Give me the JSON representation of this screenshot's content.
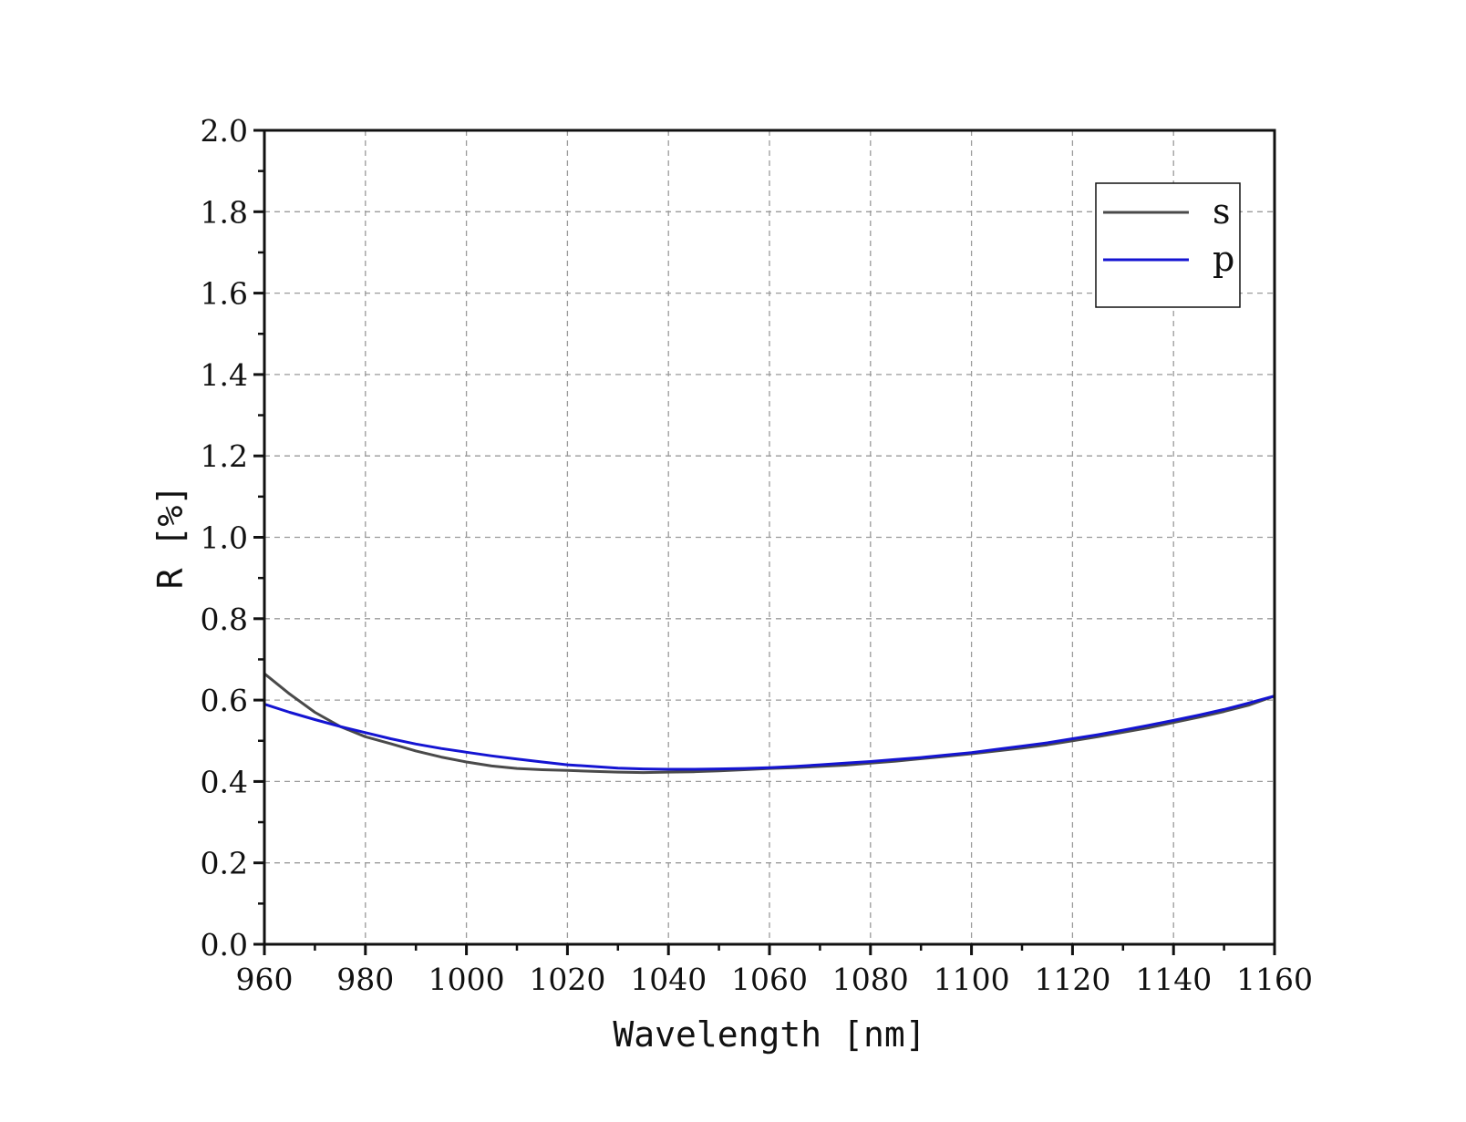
{
  "chart_data": {
    "type": "line",
    "xlabel": "Wavelength [nm]",
    "ylabel": "R [%]",
    "xlim": [
      960,
      1160
    ],
    "ylim": [
      0.0,
      2.0
    ],
    "xticks": [
      "960",
      "980",
      "1000",
      "1020",
      "1040",
      "1060",
      "1080",
      "1100",
      "1120",
      "1140",
      "1160"
    ],
    "yticks": [
      "0.0",
      "0.2",
      "0.4",
      "0.6",
      "0.8",
      "1.0",
      "1.2",
      "1.4",
      "1.6",
      "1.8",
      "2.0"
    ],
    "grid": true,
    "legend_position": "top-right",
    "series": [
      {
        "name": "s",
        "color": "#4a4a4a",
        "x": [
          960,
          965,
          970,
          975,
          980,
          985,
          990,
          995,
          1000,
          1005,
          1010,
          1015,
          1020,
          1025,
          1030,
          1035,
          1040,
          1045,
          1050,
          1055,
          1060,
          1065,
          1070,
          1075,
          1080,
          1085,
          1090,
          1095,
          1100,
          1105,
          1110,
          1115,
          1120,
          1125,
          1130,
          1135,
          1140,
          1145,
          1150,
          1155,
          1160
        ],
        "y": [
          0.665,
          0.615,
          0.57,
          0.535,
          0.51,
          0.493,
          0.475,
          0.46,
          0.448,
          0.438,
          0.432,
          0.429,
          0.427,
          0.425,
          0.423,
          0.422,
          0.423,
          0.424,
          0.426,
          0.429,
          0.432,
          0.434,
          0.437,
          0.44,
          0.445,
          0.45,
          0.456,
          0.462,
          0.468,
          0.475,
          0.482,
          0.49,
          0.5,
          0.51,
          0.521,
          0.532,
          0.545,
          0.558,
          0.572,
          0.588,
          0.61
        ]
      },
      {
        "name": "p",
        "color": "#1414d2",
        "x": [
          960,
          965,
          970,
          975,
          980,
          985,
          990,
          995,
          1000,
          1005,
          1010,
          1015,
          1020,
          1025,
          1030,
          1035,
          1040,
          1045,
          1050,
          1055,
          1060,
          1065,
          1070,
          1075,
          1080,
          1085,
          1090,
          1095,
          1100,
          1105,
          1110,
          1115,
          1120,
          1125,
          1130,
          1135,
          1140,
          1145,
          1150,
          1155,
          1160
        ],
        "y": [
          0.59,
          0.57,
          0.552,
          0.535,
          0.52,
          0.505,
          0.492,
          0.481,
          0.472,
          0.463,
          0.455,
          0.448,
          0.441,
          0.437,
          0.433,
          0.431,
          0.43,
          0.43,
          0.431,
          0.432,
          0.434,
          0.437,
          0.441,
          0.445,
          0.449,
          0.454,
          0.459,
          0.465,
          0.471,
          0.479,
          0.487,
          0.495,
          0.505,
          0.515,
          0.526,
          0.538,
          0.55,
          0.563,
          0.577,
          0.593,
          0.61
        ]
      }
    ]
  }
}
